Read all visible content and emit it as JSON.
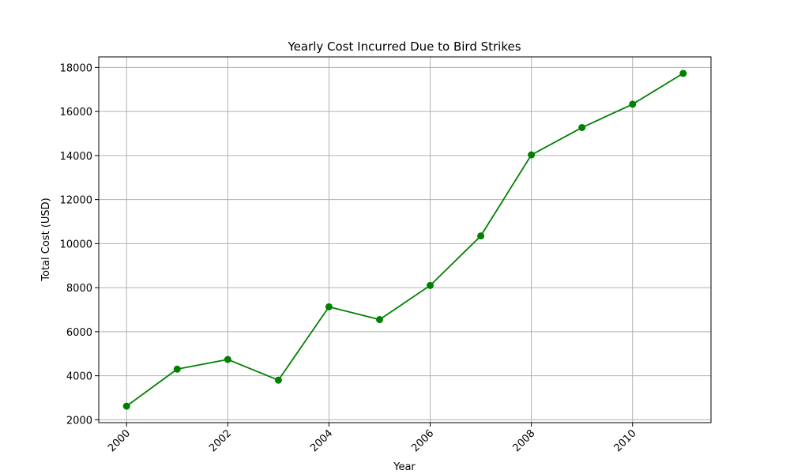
{
  "chart_data": {
    "type": "line",
    "title": "Yearly Cost Incurred Due to Bird Strikes",
    "xlabel": "Year",
    "ylabel": "Total Cost (USD)",
    "x": [
      2000,
      2001,
      2002,
      2003,
      2004,
      2005,
      2006,
      2007,
      2008,
      2009,
      2010,
      2011
    ],
    "values": [
      2620,
      4300,
      4740,
      3800,
      7130,
      6550,
      8100,
      10350,
      14030,
      15270,
      16330,
      17730
    ],
    "xlim": [
      1999.45,
      2011.55
    ],
    "ylim": [
      1870,
      18480
    ],
    "x_ticks": [
      "2000",
      "2002",
      "2004",
      "2006",
      "2008",
      "2010"
    ],
    "y_ticks": [
      "2000",
      "4000",
      "6000",
      "8000",
      "10000",
      "12000",
      "14000",
      "16000",
      "18000"
    ],
    "grid": true,
    "color": "#008000",
    "marker": "circle"
  }
}
